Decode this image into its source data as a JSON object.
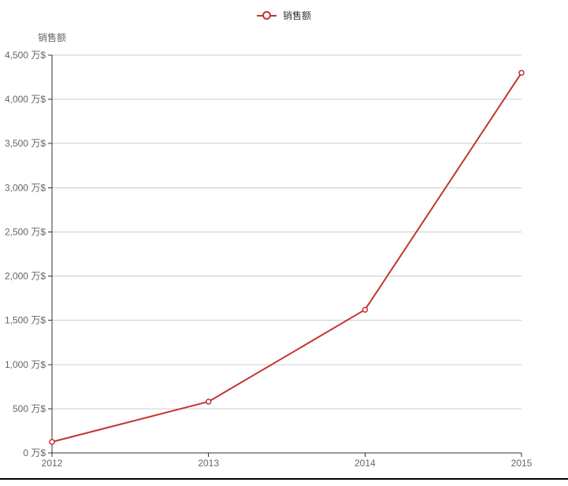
{
  "chart_data": {
    "type": "line",
    "title": "",
    "legend_position": "top",
    "legend": [
      {
        "label": "销售额"
      }
    ],
    "categories": [
      "2012",
      "2013",
      "2014",
      "2015"
    ],
    "series": [
      {
        "name": "销售额",
        "values": [
          125,
          580,
          1620,
          4300
        ]
      }
    ],
    "xlabel": "",
    "ylabel": "销售额",
    "yaxis": {
      "name": "销售额",
      "min": 0,
      "max": 4500,
      "step": 500,
      "unit": "万$",
      "tick_labels": [
        "0 万$",
        "500 万$",
        "1,000 万$",
        "1,500 万$",
        "2,000 万$",
        "2,500 万$",
        "3,000 万$",
        "3,500 万$",
        "4,000 万$",
        "4,500 万$"
      ]
    },
    "grid": true,
    "colors": {
      "series": "#c23531",
      "axis_line": "#333333",
      "grid_line": "#cccccc",
      "tick_label": "#666666",
      "legend_text": "#333333",
      "axis_name": "#666666",
      "bottom_bar": "#000000",
      "marker_fill": "#ffffff"
    }
  }
}
